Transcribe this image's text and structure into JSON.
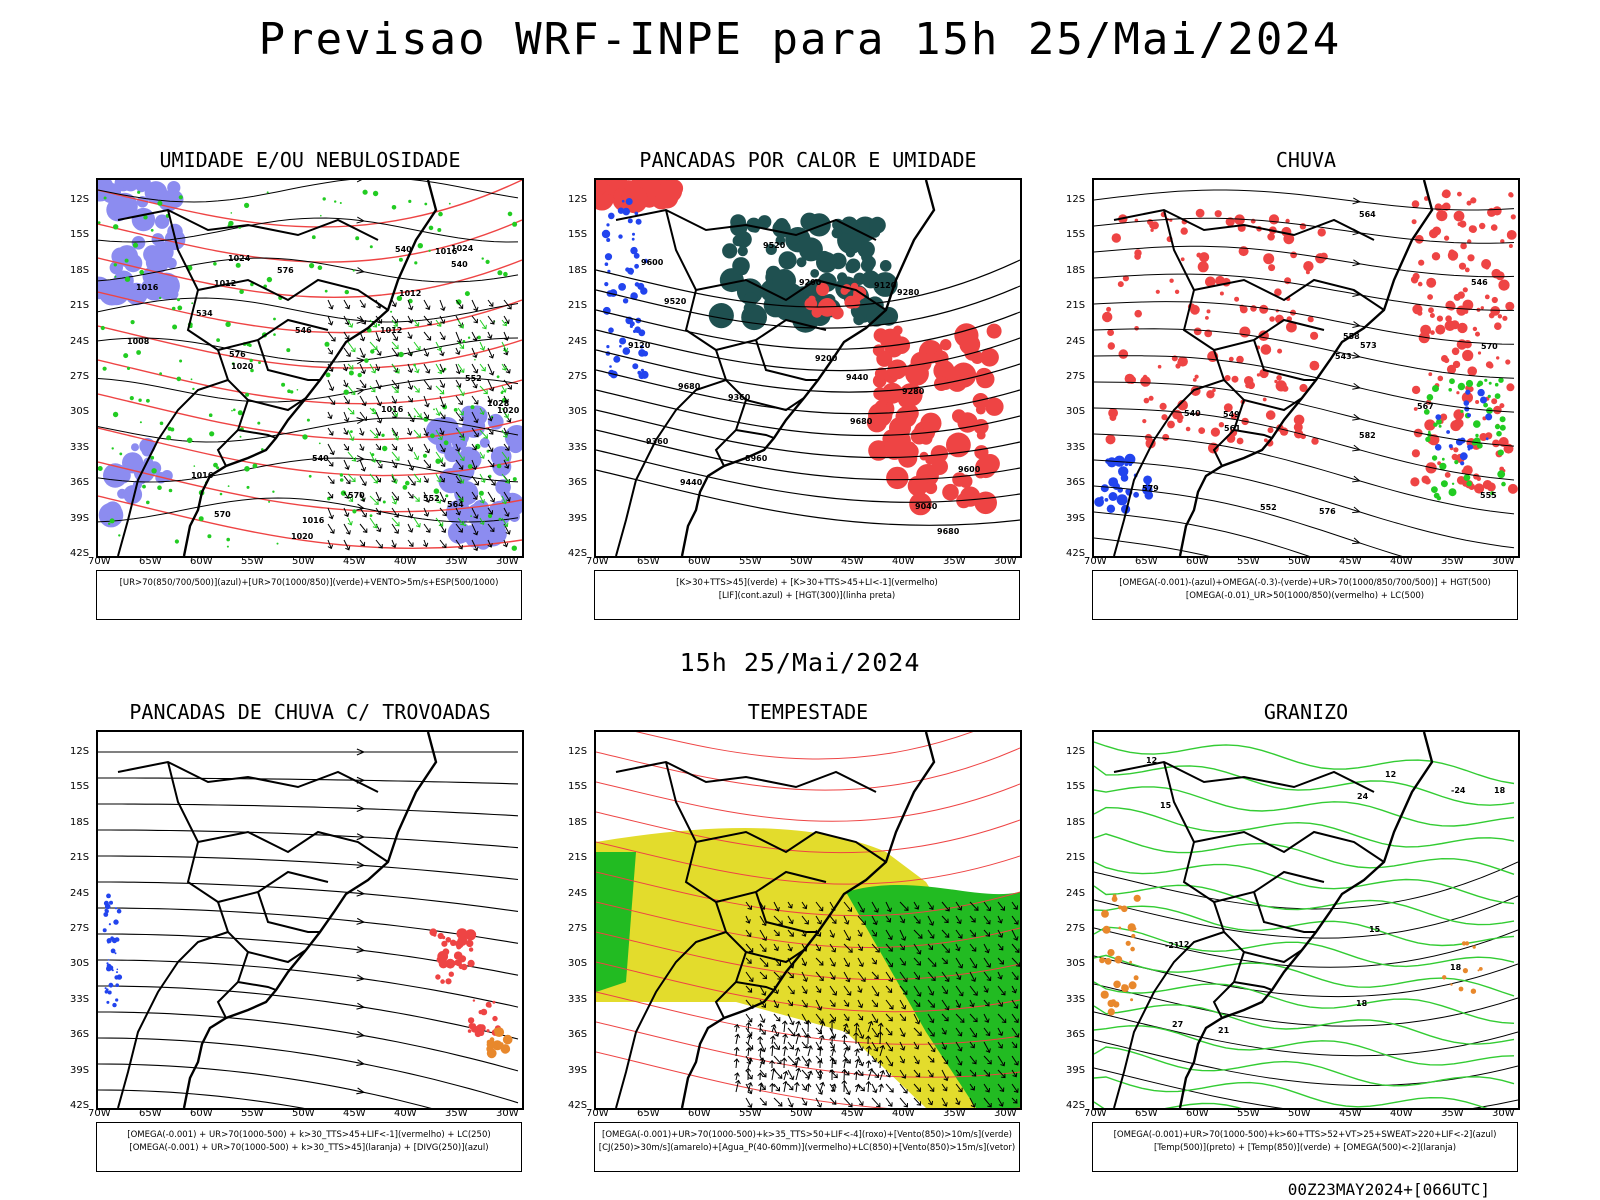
{
  "header": {
    "title": "Previsao WRF-INPE  para 15h 25/Mai/2024"
  },
  "mid_date": "15h 25/Mai/2024",
  "footer": {
    "stamp": "00Z23MAY2024+[066UTC]"
  },
  "axes": {
    "lat_labels": [
      "12S",
      "15S",
      "18S",
      "21S",
      "24S",
      "27S",
      "30S",
      "33S",
      "36S",
      "39S",
      "42S"
    ],
    "lon_labels": [
      "70W",
      "65W",
      "60W",
      "55W",
      "50W",
      "45W",
      "40W",
      "35W",
      "30W"
    ]
  },
  "panels": [
    {
      "id": "umidade",
      "title": "UMIDADE E/OU NEBULOSIDADE",
      "legend": [
        "[UR>70(850/700/500)](azul)+[UR>70(1000/850)](verde)+VENTO>5m/s+ESP(500/1000)"
      ],
      "contour_labels": [
        "1016",
        "1012",
        "1012",
        "1016",
        "1016",
        "1020",
        "1016",
        "1020",
        "1024",
        "1020",
        "1028",
        "1024",
        "1012",
        "1016",
        "1008",
        "570",
        "576",
        "576",
        "564",
        "570",
        "552",
        "552",
        "546",
        "540",
        "540",
        "534",
        "540"
      ]
    },
    {
      "id": "pancadas_calor",
      "title": "PANCADAS POR CALOR E UMIDADE",
      "legend": [
        "[K>30+TTS>45](verde) + [K>30+TTS>45+LI<-1](vermelho)",
        "[LIF](cont.azul) + [HGT(300)](linha preta)"
      ],
      "contour_labels": [
        "9680",
        "9680",
        "9680",
        "9600",
        "9600",
        "9520",
        "9440",
        "9360",
        "9280",
        "9200",
        "9120",
        "9040",
        "8960",
        "9520",
        "9440",
        "9360",
        "9280",
        "9200",
        "9120"
      ]
    },
    {
      "id": "chuva",
      "title": "CHUVA",
      "legend": [
        "[OMEGA(-0.001)-(azul)+OMEGA(-0.3)-(verde)+UR>70(1000/850/700/500)] + HGT(500)",
        "[OMEGA(-0.01)_UR>50(1000/850)(vermelho) + LC(500)"
      ],
      "contour_labels": [
        "582",
        "579",
        "576",
        "573",
        "570",
        "567",
        "564",
        "561",
        "558",
        "555",
        "552",
        "549",
        "546",
        "543",
        "540"
      ]
    },
    {
      "id": "trovoadas",
      "title": "PANCADAS DE CHUVA C/ TROVOADAS",
      "legend": [
        "[OMEGA(-0.001) + UR>70(1000-500) + k>30_TTS>45+LIF<-1](vermelho) + LC(250)",
        "[OMEGA(-0.001) + UR>70(1000-500) + k>30_TTS>45](laranja) + [DIVG(250)](azul)"
      ],
      "contour_labels": []
    },
    {
      "id": "tempestade",
      "title": "TEMPESTADE",
      "legend": [
        "[OMEGA(-0.001)+UR>70(1000-500)+k>35_TTS>50+LIF<-4](roxo)+[Vento(850)>10m/s](verde)",
        "[CJ(250)>30m/s](amarelo)+[Agua_P(40-60mm)](vermelho)+LC(850)+[Vento(850)>15m/s](vetor)"
      ],
      "contour_labels": []
    },
    {
      "id": "granizo",
      "title": "GRANIZO",
      "legend": [
        "[OMEGA(-0.001)+UR>70(1000-500)+k>60+TTS>52+VT>25+SWEAT>220+LIF<-2](azul)",
        "[Temp(500)](preto) + [Temp(850)](verde) + [OMEGA(500)<-2](laranja)"
      ],
      "contour_labels": [
        "18",
        "15",
        "12",
        "18",
        "21",
        "24",
        "27",
        "12",
        "15",
        "18",
        "-24",
        "-21",
        "-12"
      ]
    }
  ],
  "colors": {
    "blue_humidity": "#8c8cf0",
    "green": "#22cc22",
    "red": "#ee4444",
    "dark_teal": "#1f5050",
    "yellow": "#e3dc2c",
    "orange": "#e8882c",
    "blue": "#2244ee",
    "black": "#000000"
  }
}
